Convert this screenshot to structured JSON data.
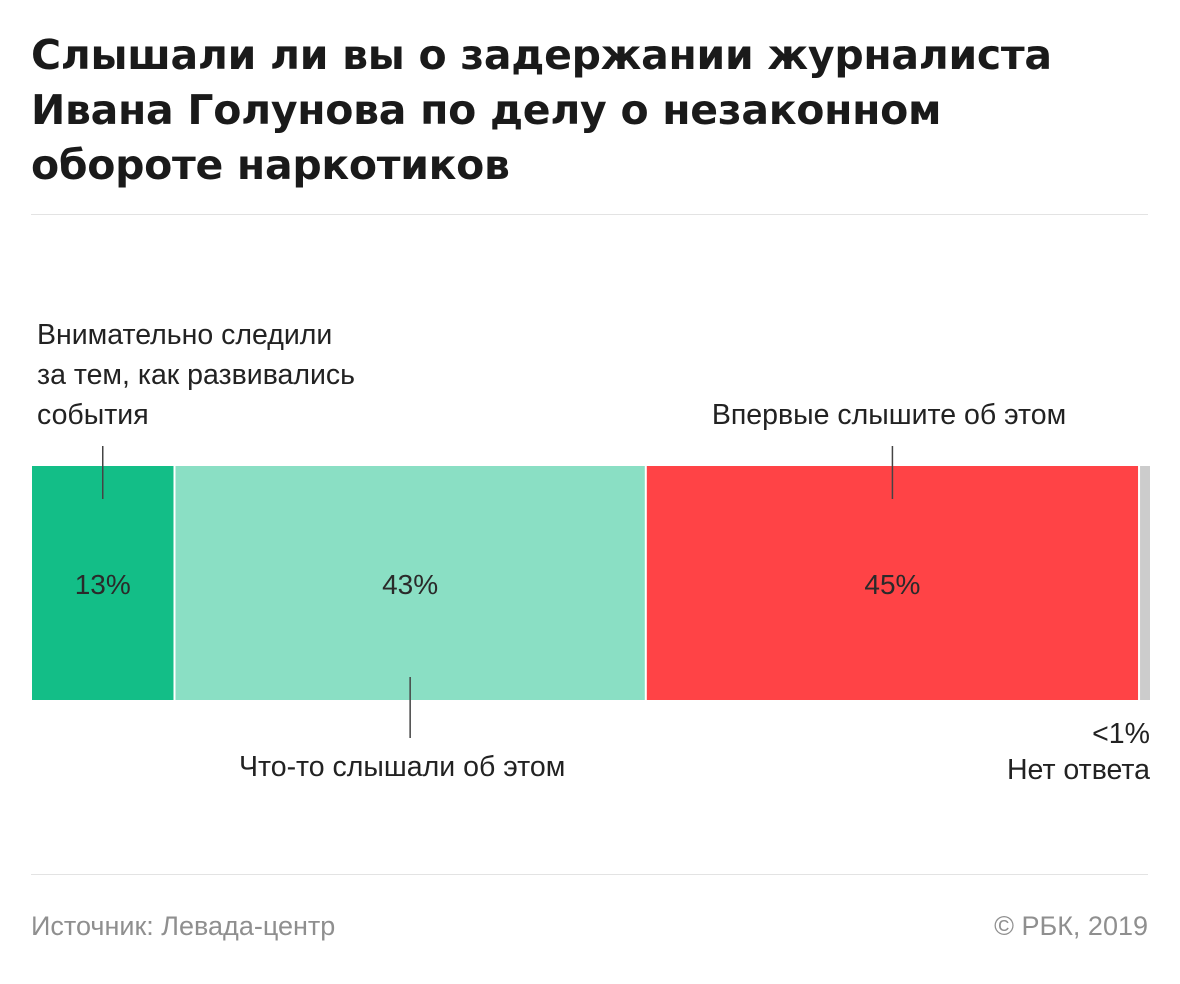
{
  "title": "Слышали ли вы о задержании журналиста Ивана Голунова по делу о незаконном обороте наркотиков",
  "source": "Источник: Левада-центр",
  "copyright": "© РБК, 2019",
  "chart_data": {
    "type": "bar",
    "orientation": "horizontal-stacked",
    "unit": "%",
    "segments": [
      {
        "name": "Внимательно следили за тем, как развивались события",
        "value": 13,
        "value_label": "13%",
        "label_lines": [
          "Внимательно следили",
          "за тем, как развивались",
          "события"
        ],
        "label_position": "above",
        "color": "#13be87"
      },
      {
        "name": "Что-то слышали об этом",
        "value": 43,
        "value_label": "43%",
        "label_lines": [
          "Что-то слышали об этом"
        ],
        "label_position": "below",
        "color": "#8adfc4"
      },
      {
        "name": "Впервые слышите об этом",
        "value": 45,
        "value_label": "45%",
        "label_lines": [
          "Впервые слышите об этом"
        ],
        "label_position": "above",
        "color": "#ff4346"
      },
      {
        "name": "Нет ответа",
        "value": 1,
        "value_label": "<1%",
        "label_lines": [
          "<1%",
          "Нет ответа"
        ],
        "label_position": "below-right",
        "color": "#cccccc"
      }
    ]
  }
}
